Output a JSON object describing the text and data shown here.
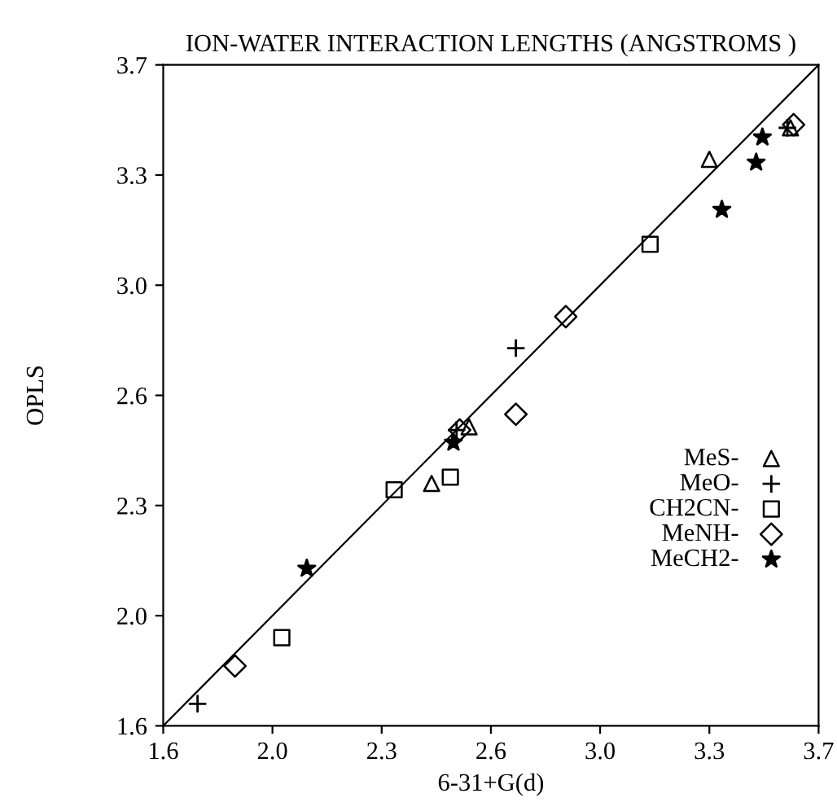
{
  "chart_data": {
    "type": "scatter",
    "title": "ION-WATER INTERACTION LENGTHS (ANGSTROMS )",
    "xlabel": "6-31+G(d)",
    "ylabel": "OPLS",
    "xlim": [
      1.6,
      3.7
    ],
    "ylim": [
      1.6,
      3.7
    ],
    "xticks": [
      1.6,
      {
        "value": 1.95,
        "label": "2.0"
      },
      2.3,
      {
        "value": 2.65,
        "label": "2.6"
      },
      {
        "value": 3.0,
        "label": "3.0"
      },
      {
        "value": 3.35,
        "label": "3.3"
      },
      3.7
    ],
    "yticks": [
      1.6,
      {
        "value": 1.95,
        "label": "2.0"
      },
      2.3,
      {
        "value": 2.65,
        "label": "2.6"
      },
      {
        "value": 3.0,
        "label": "3.0"
      },
      {
        "value": 3.35,
        "label": "3.3"
      },
      3.7
    ],
    "grid": false,
    "legend": "bottom right",
    "series": [
      {
        "name": "MeS-",
        "color": "#000000",
        "marker": "triangle",
        "x": [
          2.58,
          2.46,
          3.35,
          3.61
        ],
        "values": [
          2.55,
          2.37,
          3.4,
          3.5
        ]
      },
      {
        "name": "MeO-",
        "color": "#000000",
        "marker": "cross",
        "x": [
          1.71,
          2.73,
          2.54,
          3.6
        ],
        "values": [
          1.67,
          2.8,
          2.54,
          3.5
        ]
      },
      {
        "name": "CH2CN-",
        "color": "#000000",
        "marker": "square",
        "x": [
          1.98,
          2.34,
          2.52,
          3.16
        ],
        "values": [
          1.88,
          2.35,
          2.39,
          3.13
        ]
      },
      {
        "name": "MeNH-",
        "color": "#000000",
        "marker": "diamond",
        "x": [
          1.83,
          2.73,
          2.89,
          2.55,
          3.62
        ],
        "values": [
          1.79,
          2.59,
          2.9,
          2.54,
          3.51
        ]
      },
      {
        "name": "MeCH2-",
        "color": "#000000",
        "marker": "star",
        "x": [
          2.06,
          2.53,
          3.39,
          3.5,
          3.52
        ],
        "values": [
          2.1,
          2.5,
          3.24,
          3.39,
          3.47
        ]
      },
      {
        "type": "line",
        "color": "#000000",
        "marker": "none",
        "line_style": "solid",
        "x": [
          1.6,
          3.7
        ],
        "values": [
          1.6,
          3.7
        ]
      }
    ]
  }
}
